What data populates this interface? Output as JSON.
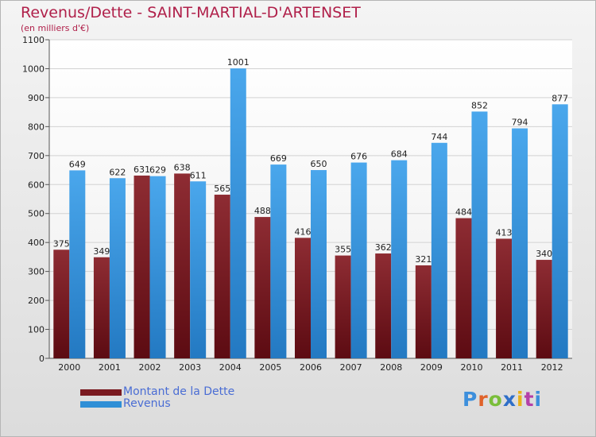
{
  "title": "Revenus/Dette - SAINT-MARTIAL-D'ARTENSET",
  "subtitle": "(en milliers d'€)",
  "brand": {
    "text": "Proxiti",
    "letter_colors": [
      "#3d8fdc",
      "#e0622a",
      "#7abe3a",
      "#2f6fc8",
      "#e9b21b",
      "#b540a8",
      "#3d8fdc"
    ]
  },
  "colors": {
    "dette": "#7a1a20",
    "revenus": "#2f8fd6",
    "title": "#b0204a",
    "legend_text": "#4a6dd4"
  },
  "chart_data": {
    "type": "bar",
    "title": "Revenus/Dette - SAINT-MARTIAL-D'ARTENSET",
    "subtitle": "(en milliers d'€)",
    "categories": [
      "2000",
      "2001",
      "2002",
      "2003",
      "2004",
      "2005",
      "2006",
      "2007",
      "2008",
      "2009",
      "2010",
      "2011",
      "2012"
    ],
    "series": [
      {
        "name": "Montant de la Dette",
        "values": [
          375,
          349,
          631,
          638,
          565,
          488,
          416,
          355,
          362,
          321,
          484,
          413,
          340
        ]
      },
      {
        "name": "Revenus",
        "values": [
          649,
          622,
          629,
          611,
          1001,
          669,
          650,
          676,
          684,
          744,
          852,
          794,
          877
        ]
      }
    ],
    "ylim": [
      0,
      1100
    ],
    "yticks": [
      0,
      100,
      200,
      300,
      400,
      500,
      600,
      700,
      800,
      900,
      1000,
      1100
    ],
    "grid": true,
    "legend_position": "bottom-left"
  }
}
